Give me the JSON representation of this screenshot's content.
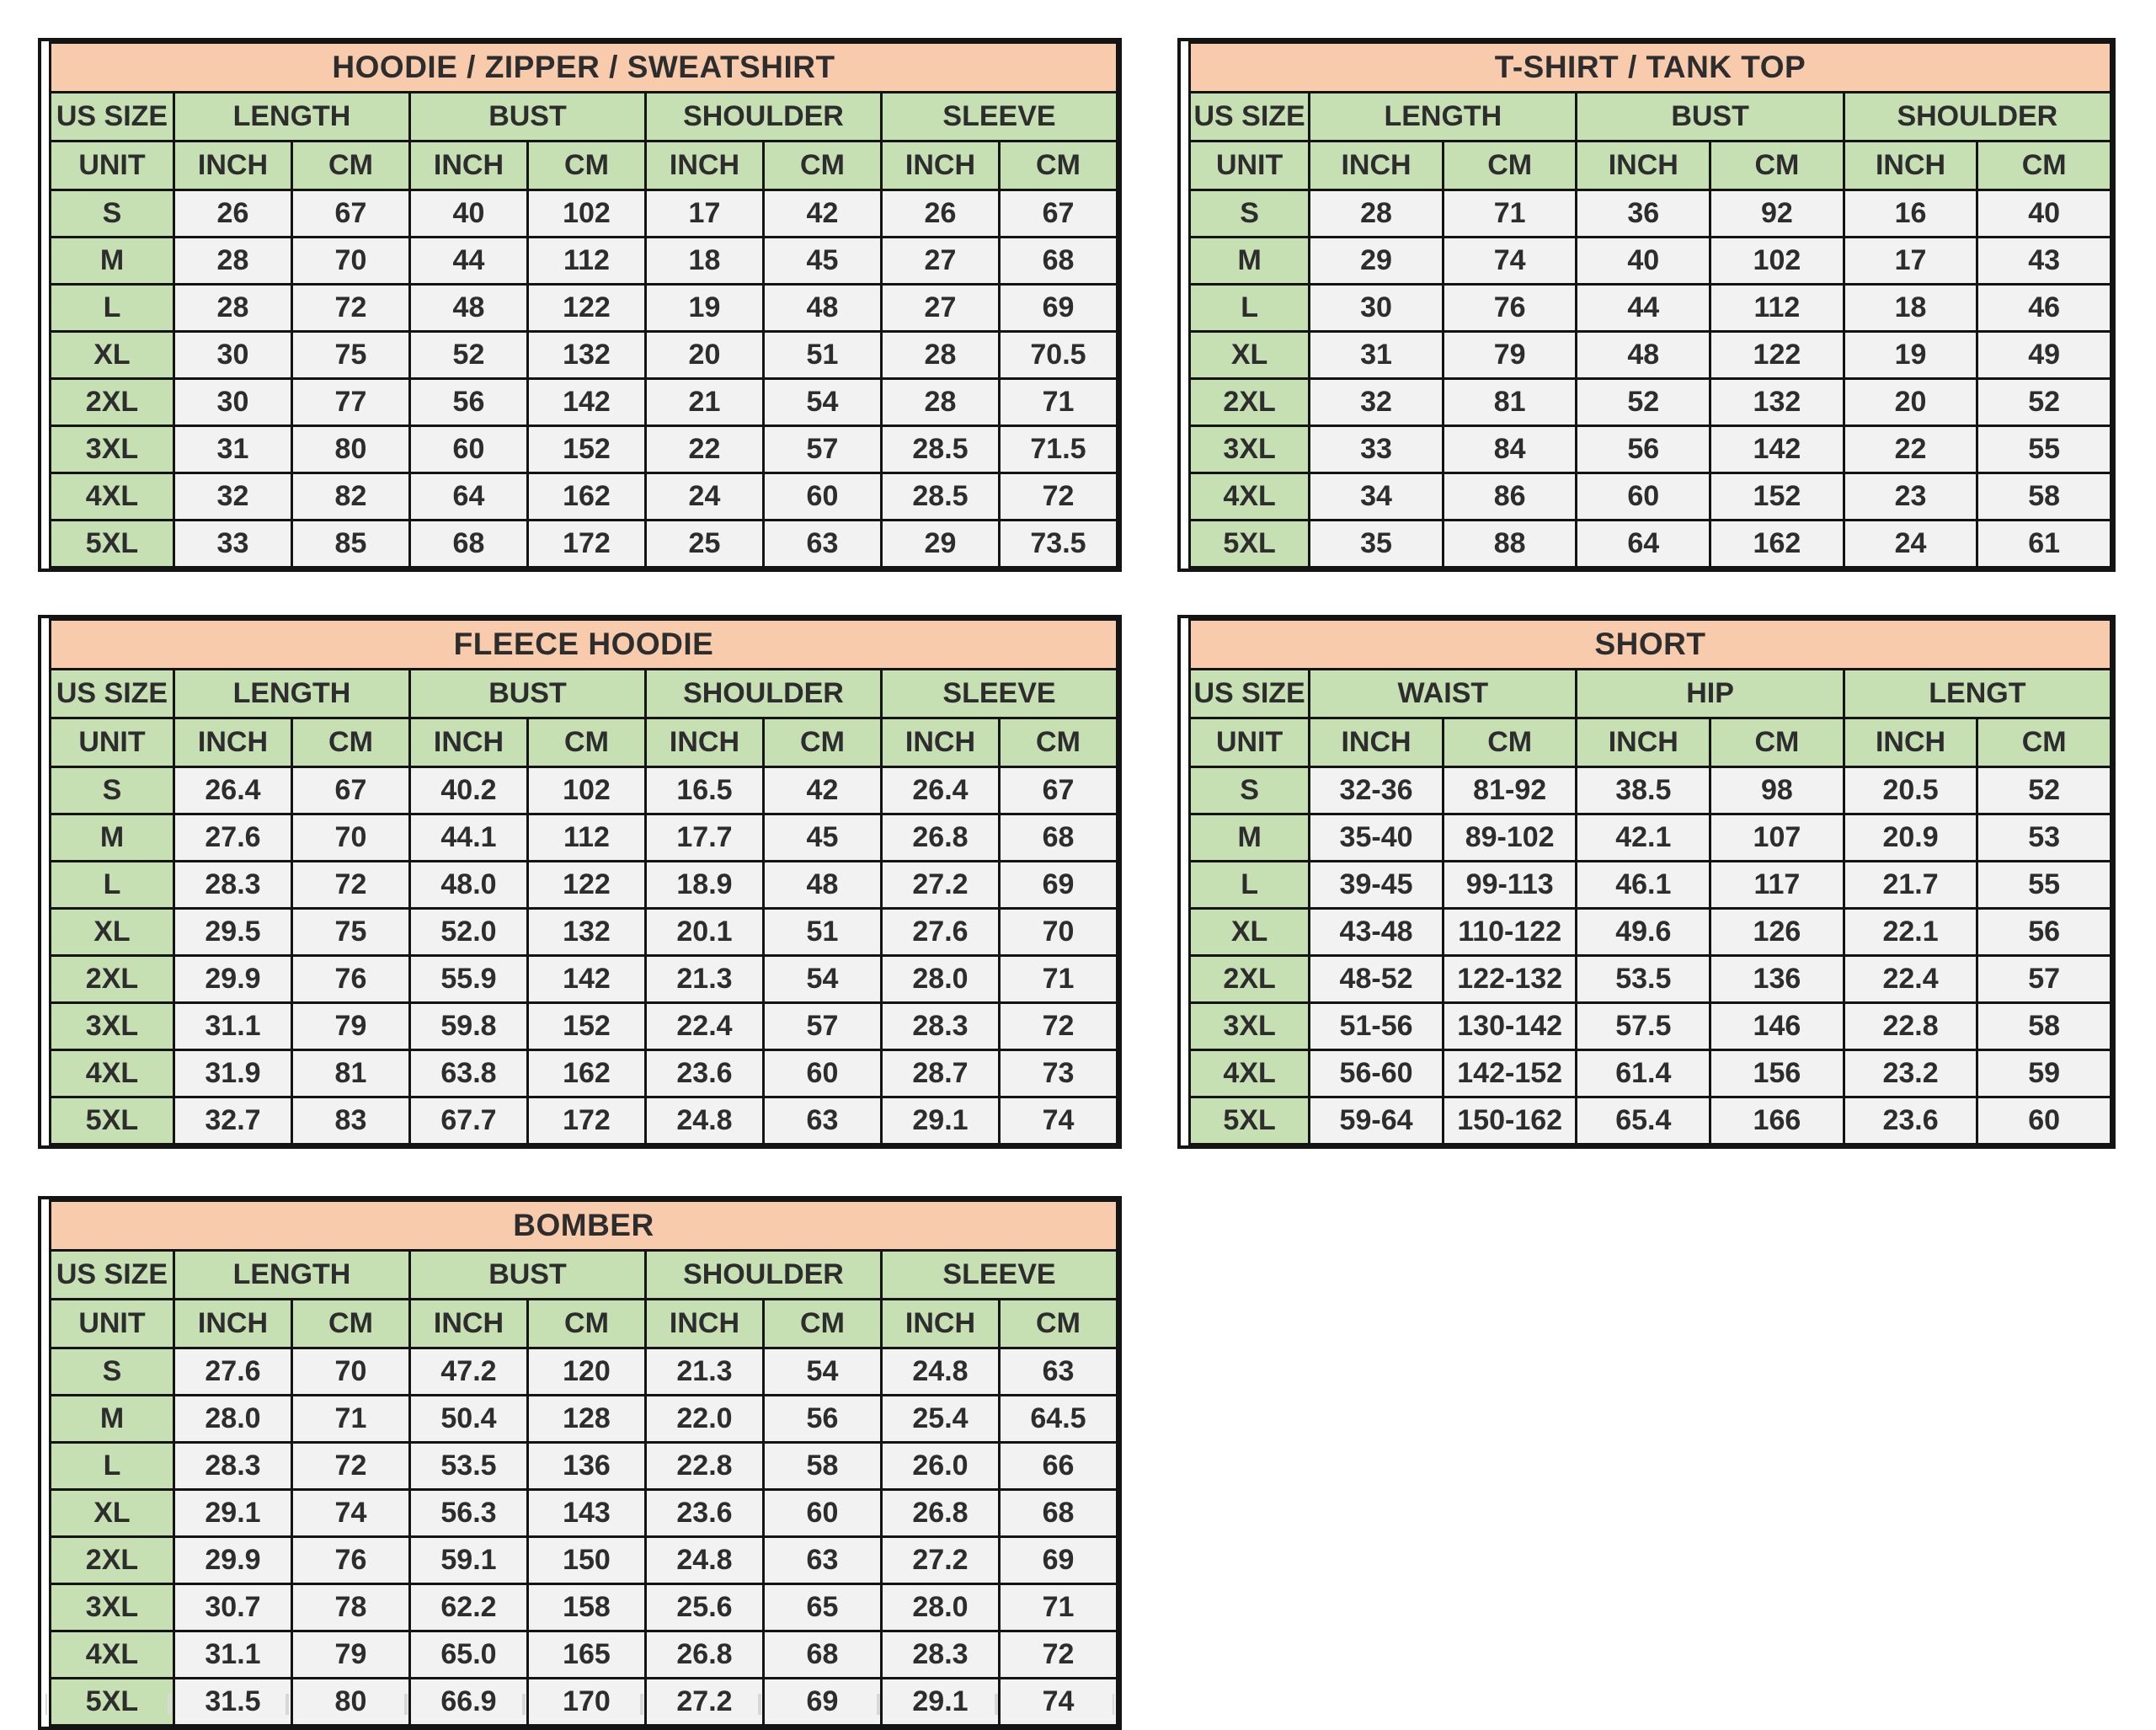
{
  "page": {
    "background": "#ffffff"
  },
  "colors": {
    "title_bg": "#F8CBAD",
    "header_bg": "#C6E0B4",
    "size_column_bg": "#C6E0B4",
    "cell_bg": "#F2F2F2",
    "border": "#141414",
    "text": "#2d2d2d"
  },
  "labels": {
    "size_header": "US SIZE",
    "unit_header": "UNIT"
  },
  "artifacts": {
    "empty_grid_row_columns": 9
  },
  "tables": [
    {
      "id": "hoodie-zipper-sweatshirt",
      "title": "HOODIE / ZIPPER / SWEATSHIRT",
      "groups": [
        {
          "label": "LENGTH",
          "units": [
            "INCH",
            "CM"
          ]
        },
        {
          "label": "BUST",
          "units": [
            "INCH",
            "CM"
          ]
        },
        {
          "label": "SHOULDER",
          "units": [
            "INCH",
            "CM"
          ]
        },
        {
          "label": "SLEEVE",
          "units": [
            "INCH",
            "CM"
          ]
        }
      ],
      "rows": [
        {
          "size": "S",
          "values": [
            "26",
            "67",
            "40",
            "102",
            "17",
            "42",
            "26",
            "67"
          ]
        },
        {
          "size": "M",
          "values": [
            "28",
            "70",
            "44",
            "112",
            "18",
            "45",
            "27",
            "68"
          ]
        },
        {
          "size": "L",
          "values": [
            "28",
            "72",
            "48",
            "122",
            "19",
            "48",
            "27",
            "69"
          ]
        },
        {
          "size": "XL",
          "values": [
            "30",
            "75",
            "52",
            "132",
            "20",
            "51",
            "28",
            "70.5"
          ]
        },
        {
          "size": "2XL",
          "values": [
            "30",
            "77",
            "56",
            "142",
            "21",
            "54",
            "28",
            "71"
          ]
        },
        {
          "size": "3XL",
          "values": [
            "31",
            "80",
            "60",
            "152",
            "22",
            "57",
            "28.5",
            "71.5"
          ]
        },
        {
          "size": "4XL",
          "values": [
            "32",
            "82",
            "64",
            "162",
            "24",
            "60",
            "28.5",
            "72"
          ]
        },
        {
          "size": "5XL",
          "values": [
            "33",
            "85",
            "68",
            "172",
            "25",
            "63",
            "29",
            "73.5"
          ]
        }
      ]
    },
    {
      "id": "tshirt-tanktop",
      "title": "T-SHIRT / TANK TOP",
      "groups": [
        {
          "label": "LENGTH",
          "units": [
            "INCH",
            "CM"
          ]
        },
        {
          "label": "BUST",
          "units": [
            "INCH",
            "CM"
          ]
        },
        {
          "label": "SHOULDER",
          "units": [
            "INCH",
            "CM"
          ]
        }
      ],
      "rows": [
        {
          "size": "S",
          "values": [
            "28",
            "71",
            "36",
            "92",
            "16",
            "40"
          ]
        },
        {
          "size": "M",
          "values": [
            "29",
            "74",
            "40",
            "102",
            "17",
            "43"
          ]
        },
        {
          "size": "L",
          "values": [
            "30",
            "76",
            "44",
            "112",
            "18",
            "46"
          ]
        },
        {
          "size": "XL",
          "values": [
            "31",
            "79",
            "48",
            "122",
            "19",
            "49"
          ]
        },
        {
          "size": "2XL",
          "values": [
            "32",
            "81",
            "52",
            "132",
            "20",
            "52"
          ]
        },
        {
          "size": "3XL",
          "values": [
            "33",
            "84",
            "56",
            "142",
            "22",
            "55"
          ]
        },
        {
          "size": "4XL",
          "values": [
            "34",
            "86",
            "60",
            "152",
            "23",
            "58"
          ]
        },
        {
          "size": "5XL",
          "values": [
            "35",
            "88",
            "64",
            "162",
            "24",
            "61"
          ]
        }
      ]
    },
    {
      "id": "fleece-hoodie",
      "title": "FLEECE HOODIE",
      "groups": [
        {
          "label": "LENGTH",
          "units": [
            "INCH",
            "CM"
          ]
        },
        {
          "label": "BUST",
          "units": [
            "INCH",
            "CM"
          ]
        },
        {
          "label": "SHOULDER",
          "units": [
            "INCH",
            "CM"
          ]
        },
        {
          "label": "SLEEVE",
          "units": [
            "INCH",
            "CM"
          ]
        }
      ],
      "rows": [
        {
          "size": "S",
          "values": [
            "26.4",
            "67",
            "40.2",
            "102",
            "16.5",
            "42",
            "26.4",
            "67"
          ]
        },
        {
          "size": "M",
          "values": [
            "27.6",
            "70",
            "44.1",
            "112",
            "17.7",
            "45",
            "26.8",
            "68"
          ]
        },
        {
          "size": "L",
          "values": [
            "28.3",
            "72",
            "48.0",
            "122",
            "18.9",
            "48",
            "27.2",
            "69"
          ]
        },
        {
          "size": "XL",
          "values": [
            "29.5",
            "75",
            "52.0",
            "132",
            "20.1",
            "51",
            "27.6",
            "70"
          ]
        },
        {
          "size": "2XL",
          "values": [
            "29.9",
            "76",
            "55.9",
            "142",
            "21.3",
            "54",
            "28.0",
            "71"
          ]
        },
        {
          "size": "3XL",
          "values": [
            "31.1",
            "79",
            "59.8",
            "152",
            "22.4",
            "57",
            "28.3",
            "72"
          ]
        },
        {
          "size": "4XL",
          "values": [
            "31.9",
            "81",
            "63.8",
            "162",
            "23.6",
            "60",
            "28.7",
            "73"
          ]
        },
        {
          "size": "5XL",
          "values": [
            "32.7",
            "83",
            "67.7",
            "172",
            "24.8",
            "63",
            "29.1",
            "74"
          ]
        }
      ]
    },
    {
      "id": "short",
      "title": "SHORT",
      "groups": [
        {
          "label": "WAIST",
          "units": [
            "INCH",
            "CM"
          ]
        },
        {
          "label": "HIP",
          "units": [
            "INCH",
            "CM"
          ]
        },
        {
          "label": "LENGT",
          "units": [
            "INCH",
            "CM"
          ]
        }
      ],
      "rows": [
        {
          "size": "S",
          "values": [
            "32-36",
            "81-92",
            "38.5",
            "98",
            "20.5",
            "52"
          ]
        },
        {
          "size": "M",
          "values": [
            "35-40",
            "89-102",
            "42.1",
            "107",
            "20.9",
            "53"
          ]
        },
        {
          "size": "L",
          "values": [
            "39-45",
            "99-113",
            "46.1",
            "117",
            "21.7",
            "55"
          ]
        },
        {
          "size": "XL",
          "values": [
            "43-48",
            "110-122",
            "49.6",
            "126",
            "22.1",
            "56"
          ]
        },
        {
          "size": "2XL",
          "values": [
            "48-52",
            "122-132",
            "53.5",
            "136",
            "22.4",
            "57"
          ]
        },
        {
          "size": "3XL",
          "values": [
            "51-56",
            "130-142",
            "57.5",
            "146",
            "22.8",
            "58"
          ]
        },
        {
          "size": "4XL",
          "values": [
            "56-60",
            "142-152",
            "61.4",
            "156",
            "23.2",
            "59"
          ]
        },
        {
          "size": "5XL",
          "values": [
            "59-64",
            "150-162",
            "65.4",
            "166",
            "23.6",
            "60"
          ]
        }
      ]
    },
    {
      "id": "bomber",
      "title": "BOMBER",
      "groups": [
        {
          "label": "LENGTH",
          "units": [
            "INCH",
            "CM"
          ]
        },
        {
          "label": "BUST",
          "units": [
            "INCH",
            "CM"
          ]
        },
        {
          "label": "SHOULDER",
          "units": [
            "INCH",
            "CM"
          ]
        },
        {
          "label": "SLEEVE",
          "units": [
            "INCH",
            "CM"
          ]
        }
      ],
      "rows": [
        {
          "size": "S",
          "values": [
            "27.6",
            "70",
            "47.2",
            "120",
            "21.3",
            "54",
            "24.8",
            "63"
          ]
        },
        {
          "size": "M",
          "values": [
            "28.0",
            "71",
            "50.4",
            "128",
            "22.0",
            "56",
            "25.4",
            "64.5"
          ]
        },
        {
          "size": "L",
          "values": [
            "28.3",
            "72",
            "53.5",
            "136",
            "22.8",
            "58",
            "26.0",
            "66"
          ]
        },
        {
          "size": "XL",
          "values": [
            "29.1",
            "74",
            "56.3",
            "143",
            "23.6",
            "60",
            "26.8",
            "68"
          ]
        },
        {
          "size": "2XL",
          "values": [
            "29.9",
            "76",
            "59.1",
            "150",
            "24.8",
            "63",
            "27.2",
            "69"
          ]
        },
        {
          "size": "3XL",
          "values": [
            "30.7",
            "78",
            "62.2",
            "158",
            "25.6",
            "65",
            "28.0",
            "71"
          ]
        },
        {
          "size": "4XL",
          "values": [
            "31.1",
            "79",
            "65.0",
            "165",
            "26.8",
            "68",
            "28.3",
            "72"
          ]
        },
        {
          "size": "5XL",
          "values": [
            "31.5",
            "80",
            "66.9",
            "170",
            "27.2",
            "69",
            "29.1",
            "74"
          ]
        }
      ]
    }
  ]
}
